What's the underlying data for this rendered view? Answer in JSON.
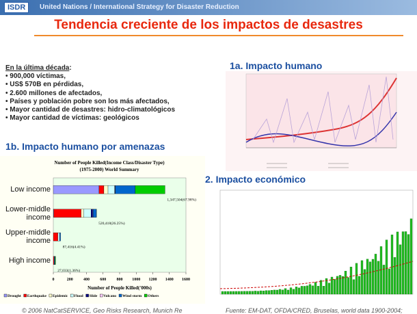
{
  "header": {
    "logo": "ISDR",
    "org": "United Nations / International Strategy for Disaster Reduction"
  },
  "title": "Tendencia creciente de los impactos de desastres",
  "summary": {
    "heading": "En la última década",
    "items": [
      "900,000 víctimas,",
      "US$ 570B en pérdidas,",
      "2.600 millones de afectados,",
      "Países y población pobre son los más afectados,",
      "Mayor cantidad de desastres: hidro-climatológicos",
      "Mayor cantidad de víctimas: geológicos"
    ]
  },
  "sections": {
    "human": "1a. Impacto humano",
    "hazards": "1b. Impacto humano por amenazas",
    "economic": "2. Impacto económico"
  },
  "footer": {
    "left": "© 2006 NatCatSERVICE, Geo Risks Research, Munich Re",
    "right": "Fuente: EM-DAT, OFDA/CRED, Bruselas, world data 1900-2004;"
  },
  "chart_data": {
    "type": "stacked-barh",
    "title": "Number of People Killed(Income Class/Disaster Type)",
    "subtitle": "(1975-2000) World Summary",
    "xlabel": "Number of People Killed('000s)",
    "categories": [
      "Low income",
      "Lower-middle income",
      "Upper-middle income",
      "High income"
    ],
    "series": [
      {
        "name": "Drought",
        "color": "#9999ff",
        "values": [
          552,
          5,
          0,
          0
        ]
      },
      {
        "name": "Earthquake",
        "color": "#ff0000",
        "values": [
          58,
          330,
          55,
          10
        ]
      },
      {
        "name": "Epidemic",
        "color": "#ffffcc",
        "values": [
          50,
          30,
          0,
          0
        ]
      },
      {
        "name": "Flood",
        "color": "#ccffff",
        "values": [
          80,
          90,
          20,
          0
        ]
      },
      {
        "name": "Slide",
        "color": "#000080",
        "values": [
          5,
          20,
          0,
          0
        ]
      },
      {
        "name": "Volcano",
        "color": "#ffccff",
        "values": [
          2.5,
          5,
          0,
          0
        ]
      },
      {
        "name": "Wind storm",
        "color": "#0066cc",
        "values": [
          240,
          40,
          12.4,
          10
        ]
      },
      {
        "name": "Others",
        "color": "#00cc00",
        "values": [
          360,
          0.4,
          0,
          7
        ]
      }
    ],
    "total_labels": [
      "1,347,504(67.98%)",
      "520,418(26.25%)",
      "87,416(4.41%)",
      "27,033(1.36%)"
    ],
    "xlim": [
      0,
      1600
    ],
    "xticks": [
      0,
      200,
      400,
      600,
      800,
      1000,
      1200,
      1400,
      1600
    ]
  }
}
